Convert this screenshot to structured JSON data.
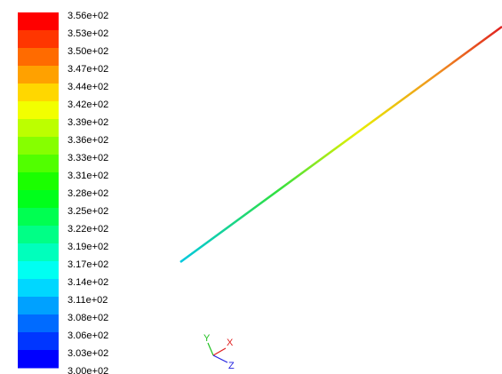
{
  "colorbar": {
    "labels": [
      "3.56e+02",
      "3.53e+02",
      "3.50e+02",
      "3.47e+02",
      "3.44e+02",
      "3.42e+02",
      "3.39e+02",
      "3.36e+02",
      "3.33e+02",
      "3.31e+02",
      "3.28e+02",
      "3.25e+02",
      "3.22e+02",
      "3.19e+02",
      "3.17e+02",
      "3.14e+02",
      "3.11e+02",
      "3.08e+02",
      "3.06e+02",
      "3.03e+02",
      "3.00e+02"
    ]
  },
  "axes": {
    "y": "Y",
    "x": "X",
    "z": "Z"
  }
}
